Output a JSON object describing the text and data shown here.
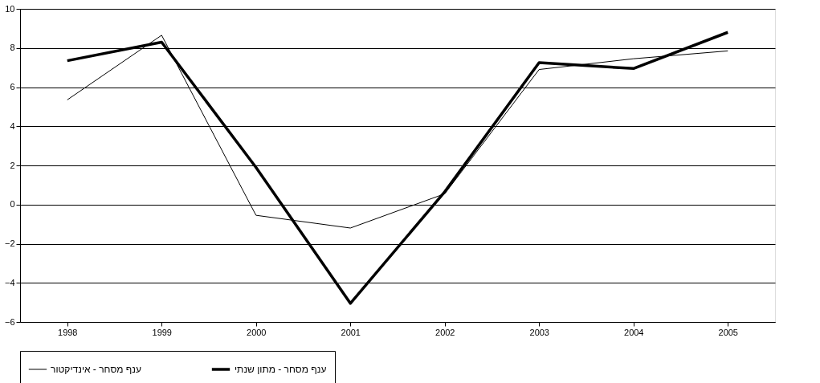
{
  "chart_data": {
    "type": "line",
    "categories": [
      "1998",
      "1999",
      "2000",
      "2001",
      "2002",
      "2003",
      "2004",
      "2005"
    ],
    "series": [
      {
        "name": "ענף מסחר - אינדיקטור",
        "color": "#000000",
        "values": [
          5.35,
          8.65,
          -0.55,
          -1.2,
          0.55,
          6.9,
          7.45,
          7.85
        ]
      },
      {
        "name": "ענף מסחר - מתון שנתי",
        "color": "#000000",
        "values": [
          7.35,
          8.3,
          1.9,
          -5.05,
          0.65,
          7.25,
          6.95,
          8.8
        ]
      }
    ],
    "ylim": [
      -6,
      10
    ],
    "yticks": [
      -6,
      -4,
      -2,
      0,
      2,
      4,
      6,
      8,
      10
    ],
    "grid": "y",
    "legend": "bottom",
    "marker": "none",
    "line_style": "solid"
  }
}
